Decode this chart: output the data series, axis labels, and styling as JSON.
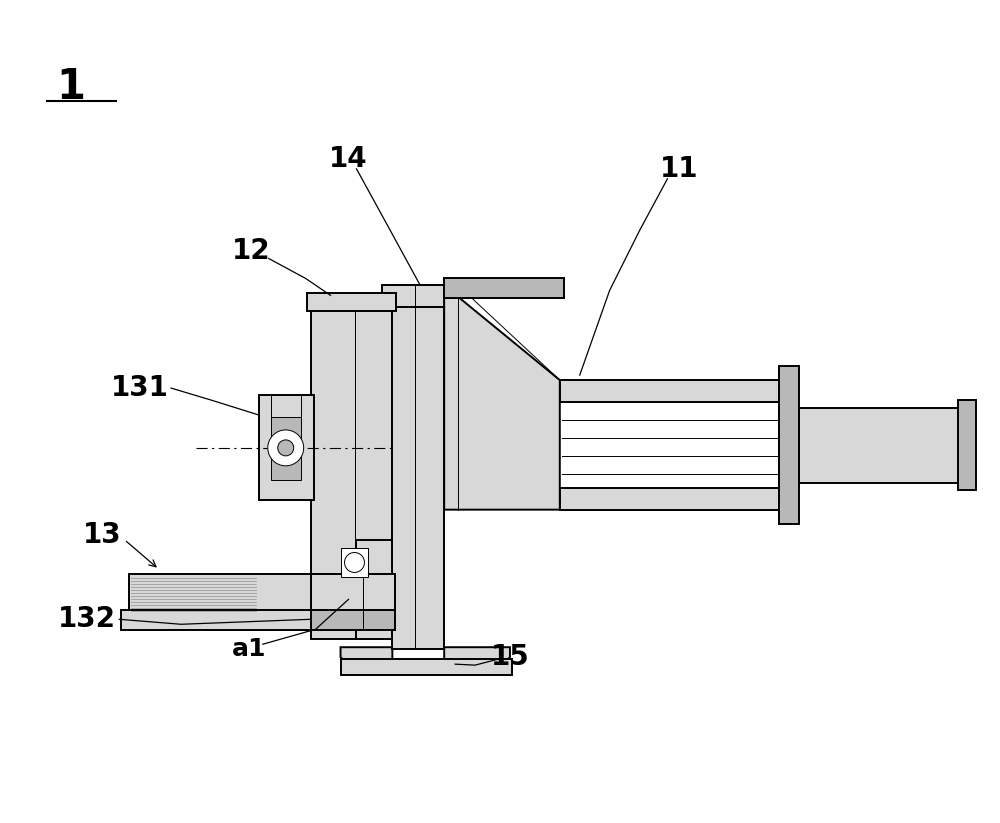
{
  "bg_color": "#ffffff",
  "lc": "#000000",
  "lgray": "#d8d8d8",
  "mgray": "#b8b8b8",
  "dgray": "#909090",
  "figsize": [
    10.0,
    8.23
  ],
  "lw_main": 1.4,
  "lw_thin": 0.7,
  "label_fontsize": 20
}
